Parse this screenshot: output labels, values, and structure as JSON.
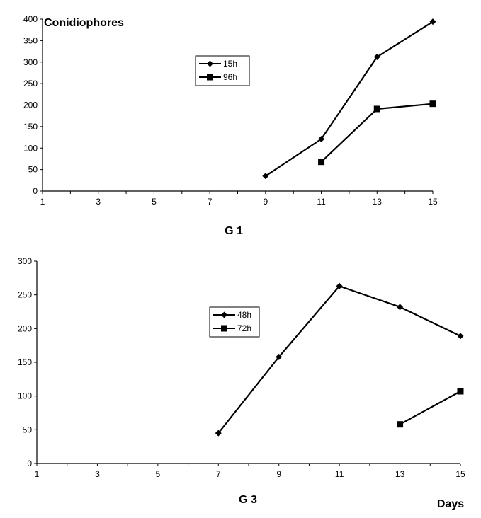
{
  "chart_data": [
    {
      "type": "line",
      "title": "G 1",
      "ylabel": "Conidiophores",
      "xlabel": "",
      "x_ticks": [
        1,
        3,
        5,
        7,
        9,
        11,
        13,
        15
      ],
      "y_ticks": [
        0,
        50,
        100,
        150,
        200,
        250,
        300,
        350,
        400
      ],
      "xlim": [
        1,
        15
      ],
      "ylim": [
        0,
        400
      ],
      "grid": false,
      "legend_position": "upper-center",
      "series": [
        {
          "name": "15h",
          "marker": "diamond",
          "x": [
            9,
            11,
            13,
            15
          ],
          "values": [
            35,
            121,
            312,
            394
          ]
        },
        {
          "name": "96h",
          "marker": "square",
          "x": [
            11,
            13,
            15
          ],
          "values": [
            68,
            191,
            203
          ]
        }
      ]
    },
    {
      "type": "line",
      "title": "G 3",
      "ylabel": "",
      "xlabel": "Days",
      "x_ticks": [
        1,
        3,
        5,
        7,
        9,
        11,
        13,
        15
      ],
      "y_ticks": [
        0,
        50,
        100,
        150,
        200,
        250,
        300
      ],
      "xlim": [
        1,
        15
      ],
      "ylim": [
        0,
        300
      ],
      "grid": false,
      "legend_position": "center",
      "series": [
        {
          "name": "48h",
          "marker": "diamond",
          "x": [
            7,
            9,
            11,
            13,
            15
          ],
          "values": [
            45,
            158,
            263,
            232,
            189
          ]
        },
        {
          "name": "72h",
          "marker": "square",
          "x": [
            13,
            15
          ],
          "values": [
            58,
            107
          ]
        }
      ]
    }
  ]
}
